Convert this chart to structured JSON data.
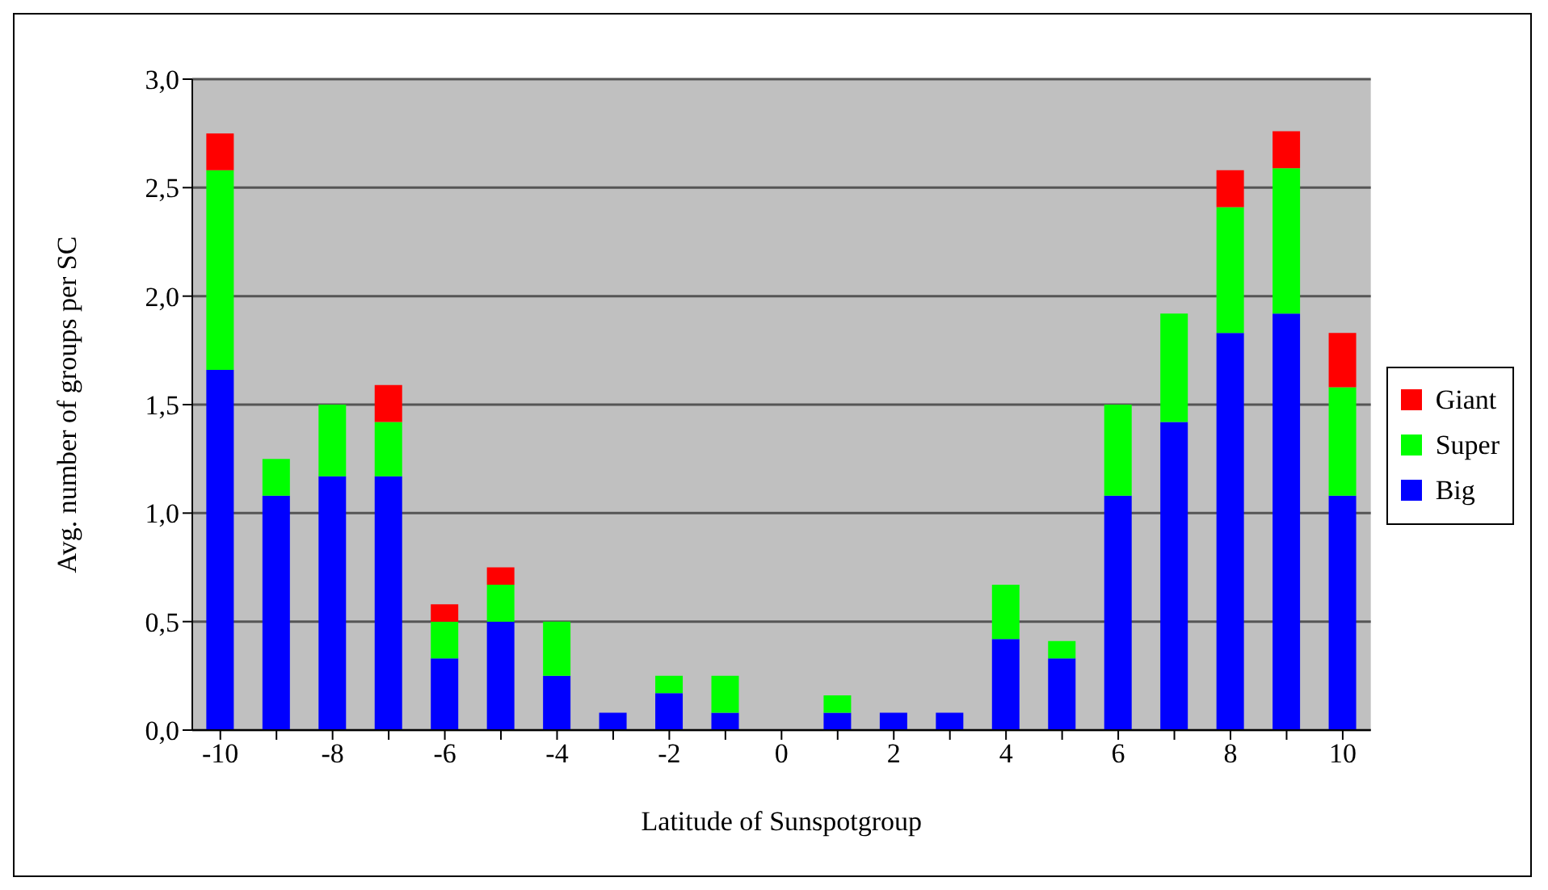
{
  "chart_data": {
    "type": "bar",
    "stacked": true,
    "xlabel": "Latitude of Sunspotgroup",
    "ylabel": "Avg. number of groups per SC",
    "categories": [
      "-10",
      null,
      "-8",
      null,
      "-6",
      null,
      "-4",
      null,
      "-2",
      null,
      "0",
      null,
      "2",
      null,
      "4",
      null,
      "6",
      null,
      "8",
      null,
      "10"
    ],
    "series": [
      {
        "name": "Big",
        "color": "#0000ff",
        "values": [
          1.66,
          1.08,
          1.17,
          1.17,
          0.33,
          0.5,
          0.25,
          0.08,
          0.17,
          0.08,
          0,
          0.08,
          0.08,
          0.08,
          0.42,
          0.33,
          1.08,
          1.42,
          1.83,
          1.92,
          1.08
        ]
      },
      {
        "name": "Super",
        "color": "#00ff00",
        "values": [
          0.92,
          0.17,
          0.33,
          0.25,
          0.17,
          0.17,
          0.25,
          0,
          0.08,
          0.17,
          0,
          0.08,
          0,
          0,
          0.25,
          0.08,
          0.42,
          0.5,
          0.58,
          0.67,
          0.5
        ]
      },
      {
        "name": "Giant",
        "color": "#ff0000",
        "values": [
          0.17,
          0,
          0,
          0.17,
          0.08,
          0.08,
          0,
          0,
          0,
          0,
          0,
          0,
          0,
          0,
          0,
          0,
          0,
          0,
          0.17,
          0.17,
          0.25
        ]
      }
    ],
    "ylim": [
      0,
      3
    ],
    "yticks": [
      {
        "value": 0,
        "label": "0,0"
      },
      {
        "value": 0.5,
        "label": "0,5"
      },
      {
        "value": 1,
        "label": "1,0"
      },
      {
        "value": 1.5,
        "label": "1,5"
      },
      {
        "value": 2,
        "label": "2,0"
      },
      {
        "value": 2.5,
        "label": "2,5"
      },
      {
        "value": 3,
        "label": "3,0"
      }
    ],
    "grid": "y",
    "legend": "right"
  }
}
